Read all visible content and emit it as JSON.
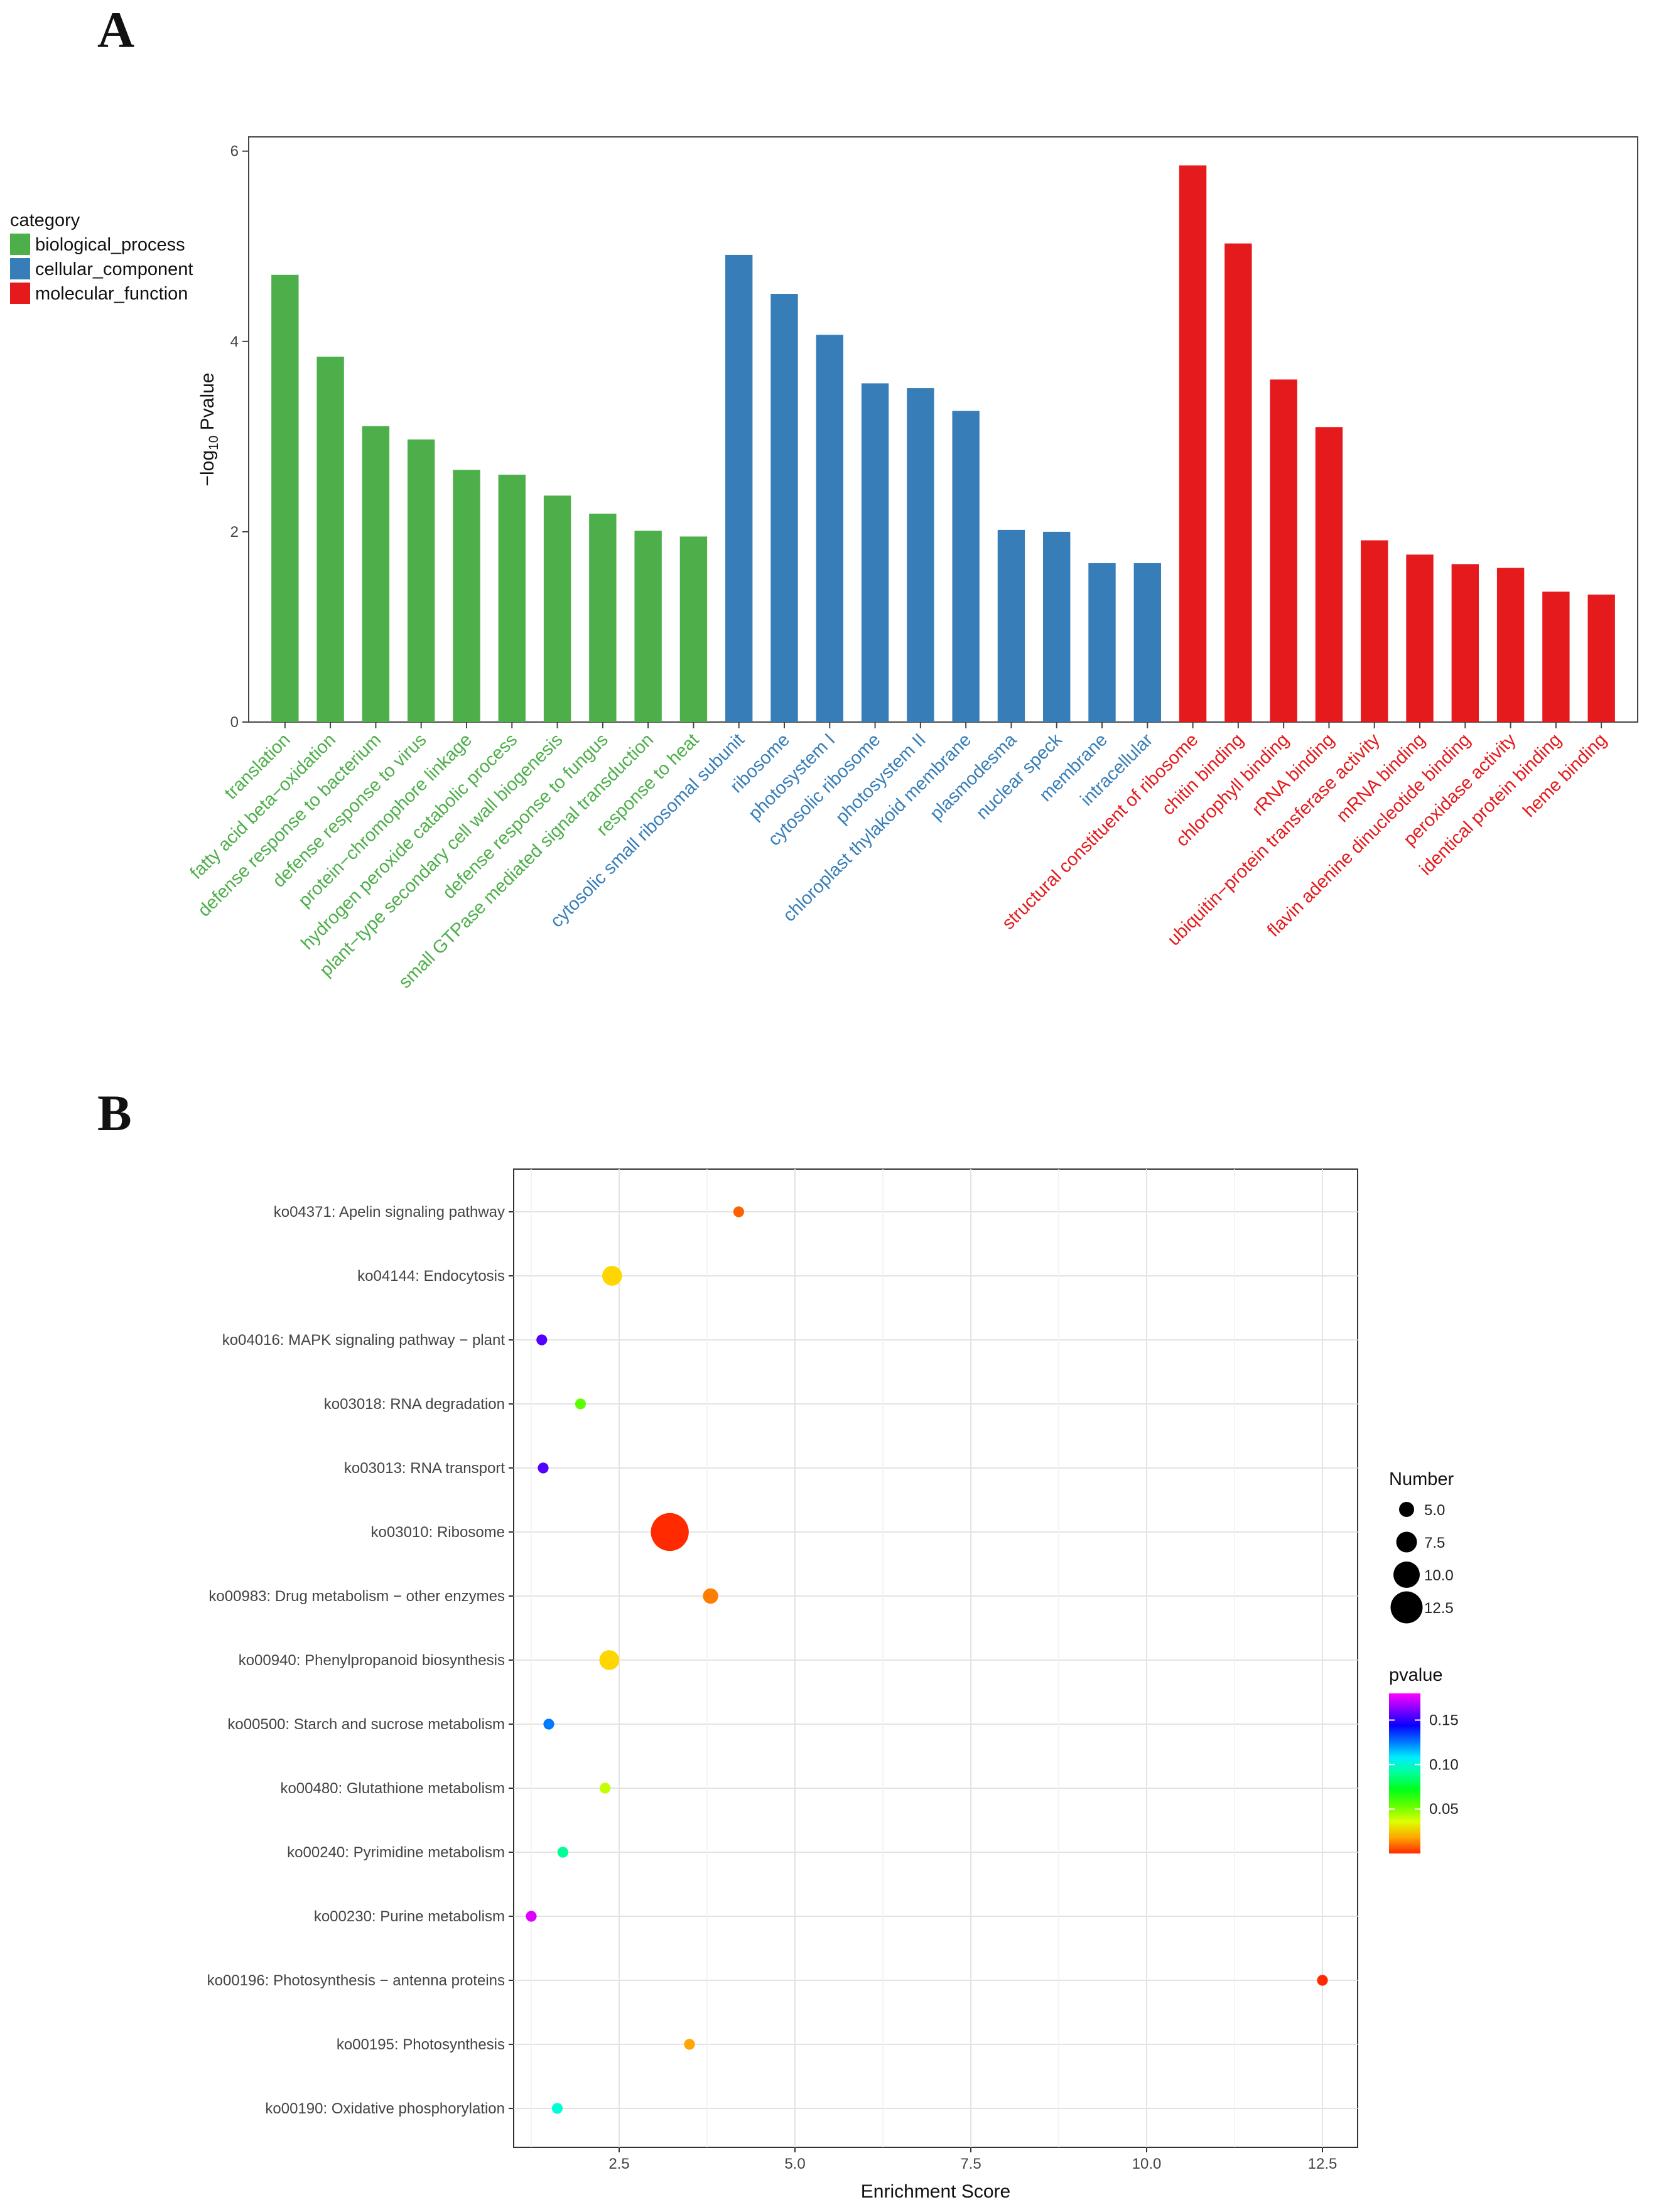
{
  "panels": {
    "a_label": "A",
    "b_label": "B"
  },
  "chart_data": [
    {
      "type": "bar",
      "panel": "A",
      "title": "",
      "xlabel": "",
      "ylabel": "−log10 Pvalue",
      "ylabel_main": "−log",
      "ylabel_sub": "10",
      "ylabel_tail": " Pvalue",
      "ylim": [
        0,
        6.15
      ],
      "yticks": [
        "0",
        "2",
        "4",
        "6"
      ],
      "grid": false,
      "legend_title": "category",
      "legend_position": "top-left",
      "series": [
        {
          "name": "biological_process",
          "color": "#4daf4a",
          "categories": [
            "translation",
            "fatty acid beta−oxidation",
            "defense response to bacterium",
            "defense response to virus",
            "protein−chromophore linkage",
            "hydrogen peroxide catabolic process",
            "plant−type secondary cell wall biogenesis",
            "defense response to fungus",
            "small GTPase mediated signal transduction",
            "response to heat"
          ],
          "values": [
            4.7,
            3.84,
            3.11,
            2.97,
            2.65,
            2.6,
            2.38,
            2.19,
            2.01,
            1.95
          ]
        },
        {
          "name": "cellular_component",
          "color": "#377eb8",
          "categories": [
            "cytosolic small ribosomal subunit",
            "ribosome",
            "photosystem I",
            "cytosolic ribosome",
            "photosystem II",
            "chloroplast thylakoid membrane",
            "plasmodesma",
            "nuclear speck",
            "membrane",
            "intracellular"
          ],
          "values": [
            4.91,
            4.5,
            4.07,
            3.56,
            3.51,
            3.27,
            2.02,
            2.0,
            1.67,
            1.67
          ]
        },
        {
          "name": "molecular_function",
          "color": "#e41a1c",
          "categories": [
            "structural constituent of ribosome",
            "chitin binding",
            "chlorophyll binding",
            "rRNA binding",
            "ubiquitin−protein transferase activity",
            "mRNA binding",
            "flavin adenine dinucleotide binding",
            "peroxidase activity",
            "identical protein binding",
            "heme binding"
          ],
          "values": [
            5.85,
            5.03,
            3.6,
            3.1,
            1.91,
            1.76,
            1.66,
            1.62,
            1.37,
            1.34
          ]
        }
      ]
    },
    {
      "type": "scatter",
      "panel": "B",
      "title": "",
      "xlabel": "Enrichment Score",
      "ylabel": "",
      "xlim": [
        1.0,
        13.0
      ],
      "xticks": [
        2.5,
        5.0,
        7.5,
        10.0,
        12.5
      ],
      "xtick_labels": [
        "2.5",
        "5.0",
        "7.5",
        "10.0",
        "12.5"
      ],
      "grid": true,
      "size_legend_title": "Number",
      "size_legend": [
        5.0,
        7.5,
        10.0,
        12.5
      ],
      "size_legend_labels": [
        "5.0",
        "7.5",
        "10.0",
        "12.5"
      ],
      "color_legend_title": "pvalue",
      "color_legend_ticks": [
        0.15,
        0.1,
        0.05
      ],
      "color_legend_labels": [
        "0.15",
        "0.10",
        "0.05"
      ],
      "color_range": [
        0.0,
        0.18
      ],
      "legend_position": "right",
      "points": [
        {
          "label": "ko04371: Apelin signaling pathway",
          "x": 4.2,
          "number": 2,
          "pvalue": 0.008
        },
        {
          "label": "ko04144: Endocytosis",
          "x": 2.4,
          "number": 6,
          "pvalue": 0.025
        },
        {
          "label": "ko04016: MAPK signaling pathway − plant",
          "x": 1.4,
          "number": 2,
          "pvalue": 0.155
        },
        {
          "label": "ko03018: RNA degradation",
          "x": 1.95,
          "number": 2,
          "pvalue": 0.055
        },
        {
          "label": "ko03013: RNA transport",
          "x": 1.42,
          "number": 2,
          "pvalue": 0.155
        },
        {
          "label": "ko03010: Ribosome",
          "x": 3.22,
          "number": 14,
          "pvalue": 0.0
        },
        {
          "label": "ko00983: Drug metabolism − other enzymes",
          "x": 3.8,
          "number": 4,
          "pvalue": 0.012
        },
        {
          "label": "ko00940: Phenylpropanoid biosynthesis",
          "x": 2.36,
          "number": 6,
          "pvalue": 0.025
        },
        {
          "label": "ko00500: Starch and sucrose metabolism",
          "x": 1.5,
          "number": 2,
          "pvalue": 0.125
        },
        {
          "label": "ko00480: Glutathione metabolism",
          "x": 2.3,
          "number": 2,
          "pvalue": 0.04
        },
        {
          "label": "ko00240: Pyrimidine metabolism",
          "x": 1.7,
          "number": 2,
          "pvalue": 0.09
        },
        {
          "label": "ko00230: Purine metabolism",
          "x": 1.25,
          "number": 2,
          "pvalue": 0.175
        },
        {
          "label": "ko00196: Photosynthesis − antenna proteins",
          "x": 12.5,
          "number": 2,
          "pvalue": 0.0
        },
        {
          "label": "ko00195: Photosynthesis",
          "x": 3.5,
          "number": 2,
          "pvalue": 0.018
        },
        {
          "label": "ko00190: Oxidative phosphorylation",
          "x": 1.62,
          "number": 2,
          "pvalue": 0.1
        }
      ]
    }
  ]
}
